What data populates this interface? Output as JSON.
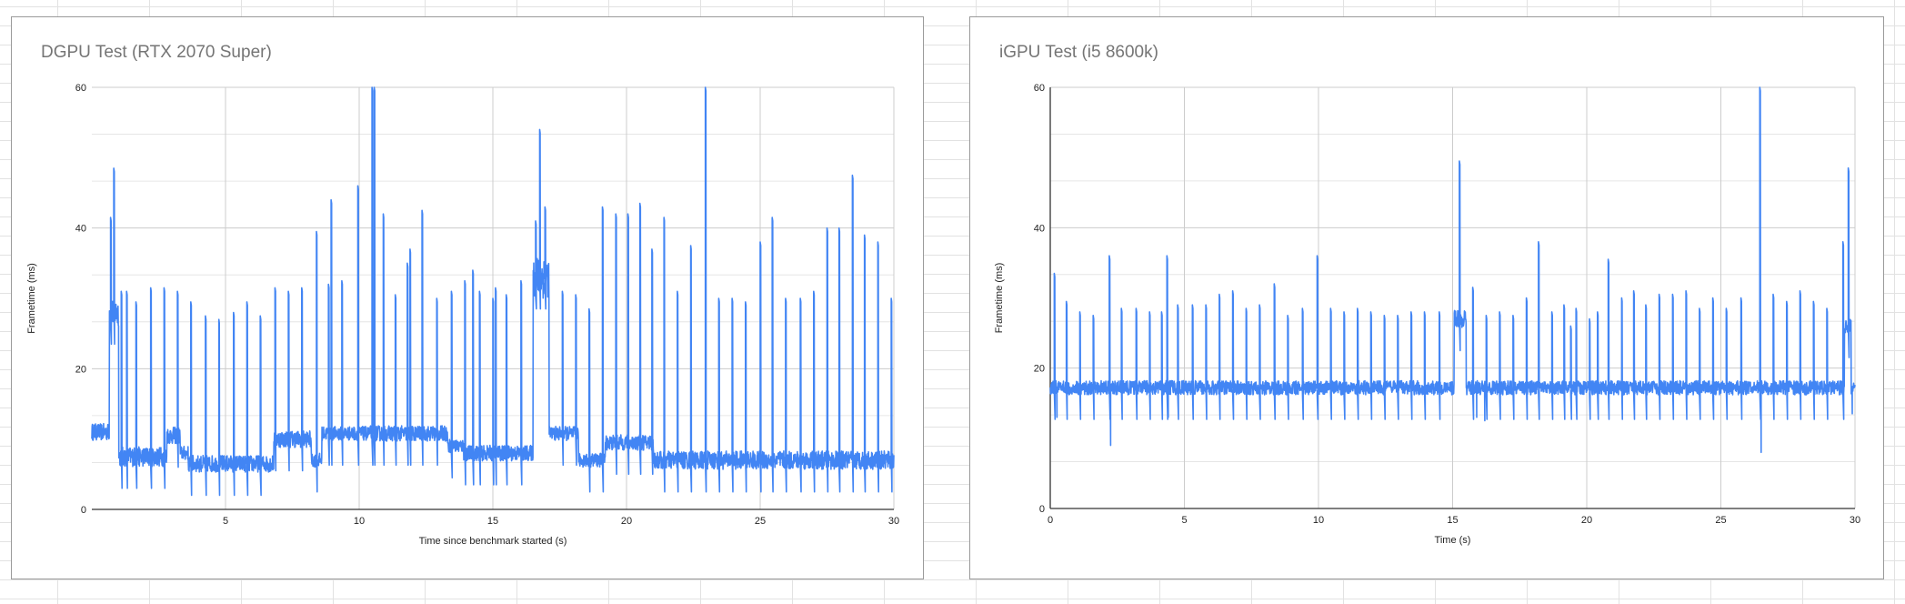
{
  "page": {
    "app": "Spreadsheet with embedded charts"
  },
  "charts": [
    {
      "title": "DGPU Test (RTX 2070 Super)",
      "xlabel": "Time since benchmark started (s)",
      "ylabel": "Frametime (ms)",
      "x_ticks": [
        "5",
        "10",
        "15",
        "20",
        "25",
        "30"
      ],
      "y_ticks": [
        "0",
        "20",
        "40",
        "60"
      ]
    },
    {
      "title": "iGPU Test (i5 8600k)",
      "xlabel": "Time (s)",
      "ylabel": "Frametime (ms)",
      "x_ticks": [
        "0",
        "5",
        "10",
        "15",
        "20",
        "25",
        "30"
      ],
      "y_ticks": [
        "0",
        "20",
        "40",
        "60"
      ]
    }
  ],
  "chart_data": [
    {
      "type": "line",
      "title": "DGPU Test (RTX 2070 Super)",
      "xlabel": "Time since benchmark started (s)",
      "ylabel": "Frametime (ms)",
      "xlim": [
        0,
        30
      ],
      "ylim": [
        0,
        60
      ],
      "x_tick_values": [
        5,
        10,
        15,
        20,
        25,
        30
      ],
      "y_tick_values": [
        0,
        20,
        40,
        60
      ],
      "minor_gridlines_per_major_y": 2,
      "grid": true,
      "legend": "none",
      "series_color": "#4285f4",
      "series": [
        {
          "name": "Frametime",
          "baseline_segments": [
            {
              "x0": 0.0,
              "x1": 0.65,
              "value": 11.0,
              "noise": 1.2
            },
            {
              "x0": 0.65,
              "x1": 1.0,
              "value": 28.0,
              "noise": 2.0
            },
            {
              "x0": 1.0,
              "x1": 2.8,
              "value": 7.5,
              "noise": 1.4
            },
            {
              "x0": 2.8,
              "x1": 3.3,
              "value": 10.5,
              "noise": 1.2
            },
            {
              "x0": 3.3,
              "x1": 3.6,
              "value": 8.0,
              "noise": 1.0
            },
            {
              "x0": 3.6,
              "x1": 6.8,
              "value": 6.5,
              "noise": 1.2
            },
            {
              "x0": 6.8,
              "x1": 8.2,
              "value": 10.0,
              "noise": 1.2
            },
            {
              "x0": 8.2,
              "x1": 8.6,
              "value": 7.0,
              "noise": 1.0
            },
            {
              "x0": 8.6,
              "x1": 10.4,
              "value": 10.8,
              "noise": 1.0
            },
            {
              "x0": 10.4,
              "x1": 13.3,
              "value": 10.8,
              "noise": 1.1
            },
            {
              "x0": 13.3,
              "x1": 13.9,
              "value": 9.0,
              "noise": 1.0
            },
            {
              "x0": 13.9,
              "x1": 16.5,
              "value": 8.0,
              "noise": 1.1
            },
            {
              "x0": 16.5,
              "x1": 17.1,
              "value": 33.0,
              "noise": 3.0
            },
            {
              "x0": 17.1,
              "x1": 18.2,
              "value": 10.8,
              "noise": 1.0
            },
            {
              "x0": 18.2,
              "x1": 19.2,
              "value": 7.0,
              "noise": 1.0
            },
            {
              "x0": 19.2,
              "x1": 21.0,
              "value": 9.5,
              "noise": 1.1
            },
            {
              "x0": 21.0,
              "x1": 30.0,
              "value": 7.0,
              "noise": 1.3
            }
          ],
          "spikes": [
            [
              0.7,
              41.5
            ],
            [
              0.82,
              48.5
            ],
            [
              1.1,
              31
            ],
            [
              1.3,
              31
            ],
            [
              1.65,
              29.5
            ],
            [
              2.2,
              31.5
            ],
            [
              2.7,
              31.5
            ],
            [
              3.2,
              31
            ],
            [
              3.7,
              29.5
            ],
            [
              4.25,
              27.5
            ],
            [
              4.75,
              27
            ],
            [
              5.3,
              28
            ],
            [
              5.8,
              29.5
            ],
            [
              6.3,
              27.5
            ],
            [
              6.85,
              31.5
            ],
            [
              7.35,
              31
            ],
            [
              7.85,
              31.5
            ],
            [
              8.4,
              39.5
            ],
            [
              8.85,
              32
            ],
            [
              8.95,
              44
            ],
            [
              9.35,
              32.5
            ],
            [
              9.95,
              46
            ],
            [
              10.48,
              60
            ],
            [
              10.56,
              60
            ],
            [
              10.9,
              42
            ],
            [
              11.35,
              30.5
            ],
            [
              11.8,
              35
            ],
            [
              11.9,
              37
            ],
            [
              12.35,
              42.5
            ],
            [
              12.9,
              30
            ],
            [
              13.45,
              31
            ],
            [
              13.95,
              32.5
            ],
            [
              14.25,
              34
            ],
            [
              14.5,
              31
            ],
            [
              15.0,
              30
            ],
            [
              15.1,
              31.5
            ],
            [
              15.5,
              30.5
            ],
            [
              16.05,
              32.5
            ],
            [
              16.6,
              41
            ],
            [
              16.75,
              54
            ],
            [
              16.95,
              43
            ],
            [
              17.6,
              31
            ],
            [
              18.1,
              30.5
            ],
            [
              18.6,
              28.5
            ],
            [
              19.1,
              43
            ],
            [
              19.6,
              42
            ],
            [
              20.05,
              42
            ],
            [
              20.5,
              43.5
            ],
            [
              20.95,
              37
            ],
            [
              21.4,
              41.5
            ],
            [
              21.9,
              31
            ],
            [
              22.4,
              37.5
            ],
            [
              22.95,
              60
            ],
            [
              23.45,
              30
            ],
            [
              23.95,
              30
            ],
            [
              24.45,
              29.5
            ],
            [
              25.0,
              38
            ],
            [
              25.45,
              41.5
            ],
            [
              25.95,
              30
            ],
            [
              26.5,
              30
            ],
            [
              27.0,
              31
            ],
            [
              27.5,
              40
            ],
            [
              27.95,
              40
            ],
            [
              28.45,
              47.5
            ],
            [
              28.9,
              39
            ],
            [
              29.4,
              38
            ],
            [
              29.9,
              30
            ]
          ]
        }
      ]
    },
    {
      "type": "line",
      "title": "iGPU Test (i5 8600k)",
      "xlabel": "Time (s)",
      "ylabel": "Frametime (ms)",
      "xlim": [
        0,
        30
      ],
      "ylim": [
        0,
        60
      ],
      "x_tick_values": [
        0,
        5,
        10,
        15,
        20,
        25,
        30
      ],
      "y_tick_values": [
        0,
        20,
        40,
        60
      ],
      "minor_gridlines_per_major_y": 2,
      "grid": true,
      "legend": "none",
      "series_color": "#4285f4",
      "series": [
        {
          "name": "Frametime",
          "baseline_segments": [
            {
              "x0": 0.0,
              "x1": 15.05,
              "value": 17.2,
              "noise": 1.0
            },
            {
              "x0": 15.05,
              "x1": 15.5,
              "value": 27.0,
              "noise": 1.2
            },
            {
              "x0": 15.5,
              "x1": 29.6,
              "value": 17.2,
              "noise": 1.0
            },
            {
              "x0": 29.6,
              "x1": 29.85,
              "value": 26.0,
              "noise": 1.0
            },
            {
              "x0": 29.85,
              "x1": 30.0,
              "value": 17.0,
              "noise": 1.0
            }
          ],
          "spikes": [
            [
              0.15,
              33.5
            ],
            [
              0.6,
              29.5
            ],
            [
              1.1,
              28
            ],
            [
              1.6,
              27.5
            ],
            [
              2.2,
              36
            ],
            [
              2.65,
              28.5
            ],
            [
              3.2,
              28.5
            ],
            [
              3.7,
              28
            ],
            [
              4.15,
              28
            ],
            [
              4.35,
              36
            ],
            [
              4.75,
              29
            ],
            [
              5.3,
              29
            ],
            [
              5.8,
              29
            ],
            [
              6.3,
              30.5
            ],
            [
              6.8,
              31
            ],
            [
              7.3,
              28.5
            ],
            [
              7.8,
              29
            ],
            [
              8.35,
              32
            ],
            [
              8.85,
              27.5
            ],
            [
              9.4,
              28.5
            ],
            [
              9.95,
              36
            ],
            [
              10.45,
              28.5
            ],
            [
              10.95,
              28
            ],
            [
              11.45,
              28.5
            ],
            [
              11.95,
              28
            ],
            [
              12.45,
              27.5
            ],
            [
              12.95,
              27.5
            ],
            [
              13.45,
              28
            ],
            [
              13.95,
              28
            ],
            [
              14.5,
              28
            ],
            [
              15.25,
              49.5
            ],
            [
              15.75,
              31.5
            ],
            [
              16.25,
              27.5
            ],
            [
              16.75,
              28
            ],
            [
              17.25,
              27.5
            ],
            [
              17.75,
              30
            ],
            [
              18.2,
              38
            ],
            [
              18.7,
              28
            ],
            [
              19.15,
              29
            ],
            [
              19.4,
              26
            ],
            [
              19.6,
              28.5
            ],
            [
              20.1,
              27
            ],
            [
              20.4,
              28
            ],
            [
              20.8,
              35.5
            ],
            [
              21.3,
              30
            ],
            [
              21.75,
              31
            ],
            [
              22.2,
              29
            ],
            [
              22.7,
              30.5
            ],
            [
              23.2,
              30.5
            ],
            [
              23.7,
              31
            ],
            [
              24.2,
              28.5
            ],
            [
              24.7,
              30
            ],
            [
              25.2,
              28.5
            ],
            [
              25.75,
              30
            ],
            [
              26.45,
              60
            ],
            [
              26.95,
              30.5
            ],
            [
              27.45,
              29.5
            ],
            [
              27.95,
              31
            ],
            [
              28.45,
              29.5
            ],
            [
              28.95,
              28.5
            ],
            [
              29.55,
              38
            ],
            [
              29.75,
              48.5
            ]
          ],
          "dips": [
            [
              0.25,
              13
            ],
            [
              2.25,
              9
            ],
            [
              4.4,
              13
            ],
            [
              26.5,
              8
            ],
            [
              29.9,
              13.5
            ],
            [
              15.9,
              13
            ],
            [
              16.2,
              12.5
            ]
          ]
        }
      ]
    }
  ]
}
